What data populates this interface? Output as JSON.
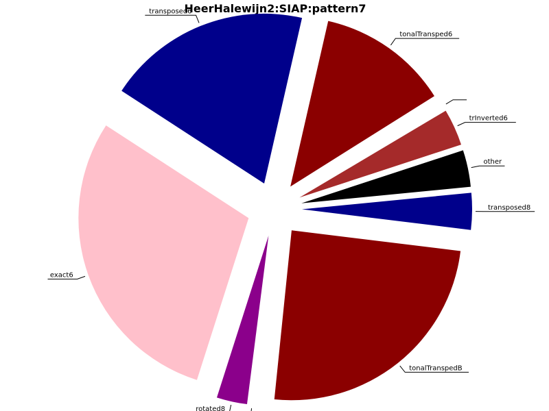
{
  "chart_data": {
    "type": "pie",
    "title": "HeerHalewijn2:SIAP:pattern7",
    "start_angle_deg": -7,
    "direction": "counterclockwise",
    "exploded": true,
    "slices": [
      {
        "label": "transposed8",
        "value": 3.5,
        "color": "#00008b"
      },
      {
        "label": "other",
        "value": 3.5,
        "color": "#000000"
      },
      {
        "label": "trInverted6",
        "value": 3.5,
        "color": "#a52a2a"
      },
      {
        "label": "",
        "value": 0.4,
        "color": "#ffffff"
      },
      {
        "label": "tonalTransped6",
        "value": 12.5,
        "color": "#8b0000"
      },
      {
        "label": "transposed6",
        "value": 19.4,
        "color": "#00008b"
      },
      {
        "label": "exact6",
        "value": 29.3,
        "color": "#ffc0cb"
      },
      {
        "label": "rotated8",
        "value": 2.9,
        "color": "#8b008b"
      },
      {
        "label": "",
        "value": 0.4,
        "color": "#ffffff"
      },
      {
        "label": "tonalTranspedB",
        "value": 24.7,
        "color": "#8b0000"
      }
    ]
  }
}
